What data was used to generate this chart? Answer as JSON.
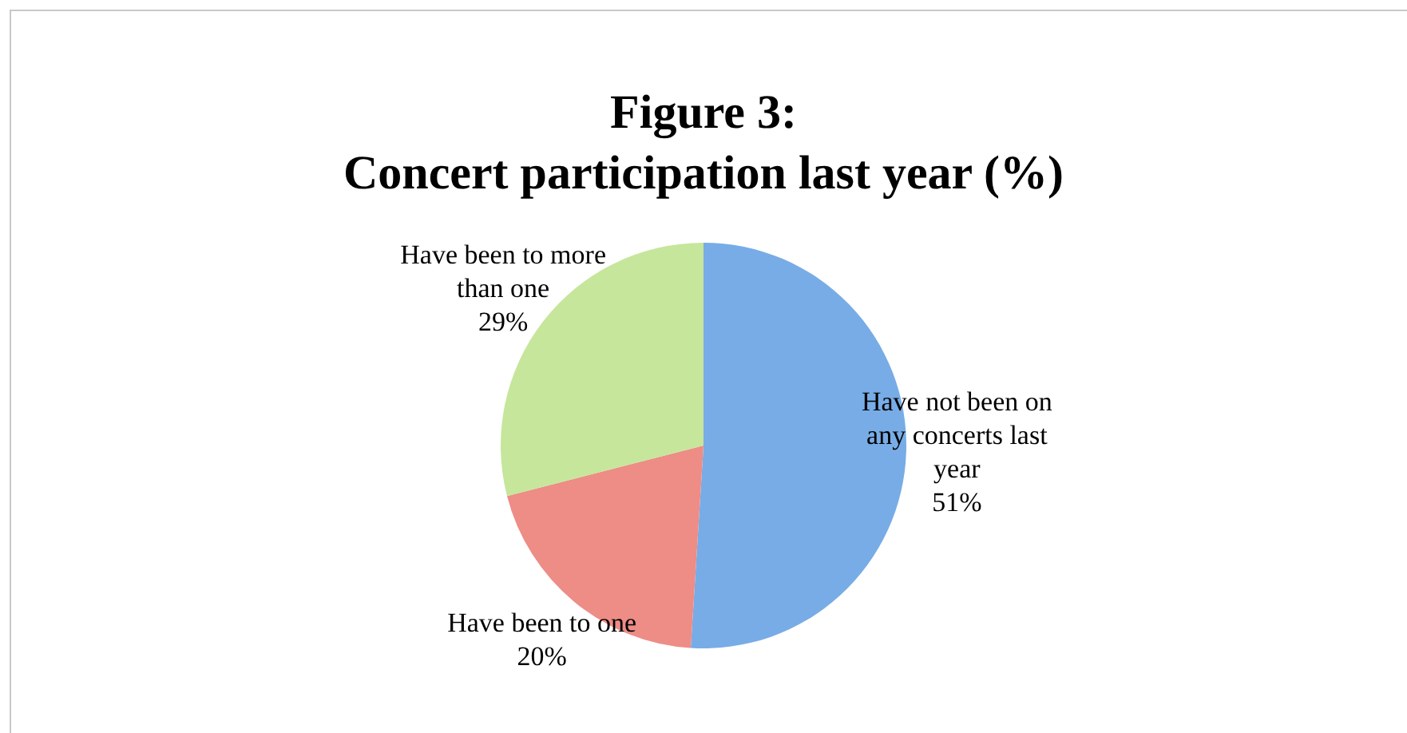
{
  "chart_data": {
    "type": "pie",
    "title": "Figure 3:",
    "subtitle": "Concert participation last year (%)",
    "categories": [
      "Have not been on any concerts last year",
      "Have been to one",
      "Have been to more than one"
    ],
    "values": [
      51,
      20,
      29
    ],
    "colors": [
      "#78ace6",
      "#ee8c86",
      "#c6e69c"
    ],
    "value_labels": [
      "51%",
      "20%",
      "29%"
    ],
    "legend": false
  }
}
